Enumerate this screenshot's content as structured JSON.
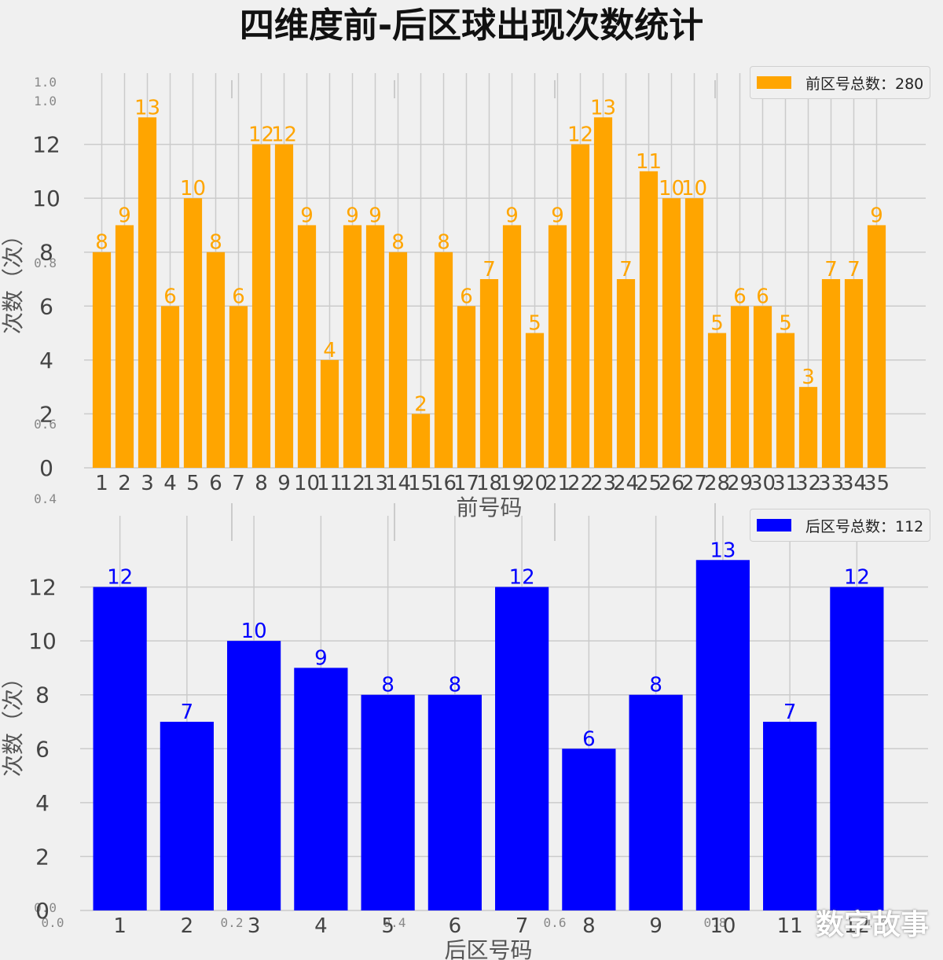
{
  "title": "四维度前-后区球出现次数统计",
  "watermark": "数字故事",
  "colors": {
    "front": "#ffa500",
    "back": "#0000ff",
    "grid": "#cbcbcb",
    "background": "#f0f0f0"
  },
  "background_axis": {
    "ticks": [
      "0.0",
      "0.2",
      "0.4",
      "0.6",
      "0.8",
      "1.0"
    ]
  },
  "chart_data": [
    {
      "type": "bar",
      "xlabel": "前号码",
      "ylabel": "次数（次）",
      "legend": "前区号总数：280",
      "legend_position": "top-right",
      "categories": [
        "1",
        "2",
        "3",
        "4",
        "5",
        "6",
        "7",
        "8",
        "9",
        "10",
        "11",
        "12",
        "13",
        "14",
        "15",
        "16",
        "17",
        "18",
        "19",
        "20",
        "21",
        "22",
        "23",
        "24",
        "25",
        "26",
        "27",
        "28",
        "29",
        "30",
        "31",
        "32",
        "33",
        "34",
        "35"
      ],
      "values": [
        8,
        9,
        13,
        6,
        10,
        8,
        6,
        12,
        12,
        9,
        4,
        9,
        9,
        8,
        2,
        8,
        6,
        7,
        9,
        5,
        9,
        12,
        13,
        7,
        11,
        10,
        10,
        5,
        6,
        6,
        5,
        3,
        7,
        7,
        9
      ],
      "yticks": [
        0,
        2,
        4,
        6,
        8,
        10,
        12
      ],
      "ylim": [
        0,
        14
      ],
      "grid": true,
      "color": "#ffa500"
    },
    {
      "type": "bar",
      "xlabel": "后区号码",
      "ylabel": "次数（次）",
      "legend": "后区号总数：112",
      "legend_position": "top-right",
      "categories": [
        "1",
        "2",
        "3",
        "4",
        "5",
        "6",
        "7",
        "8",
        "9",
        "10",
        "11",
        "12"
      ],
      "values": [
        12,
        7,
        10,
        9,
        8,
        8,
        12,
        6,
        8,
        13,
        7,
        12
      ],
      "yticks": [
        0,
        2,
        4,
        6,
        8,
        10,
        12
      ],
      "ylim": [
        0,
        14
      ],
      "grid": true,
      "color": "#0000ff"
    }
  ]
}
